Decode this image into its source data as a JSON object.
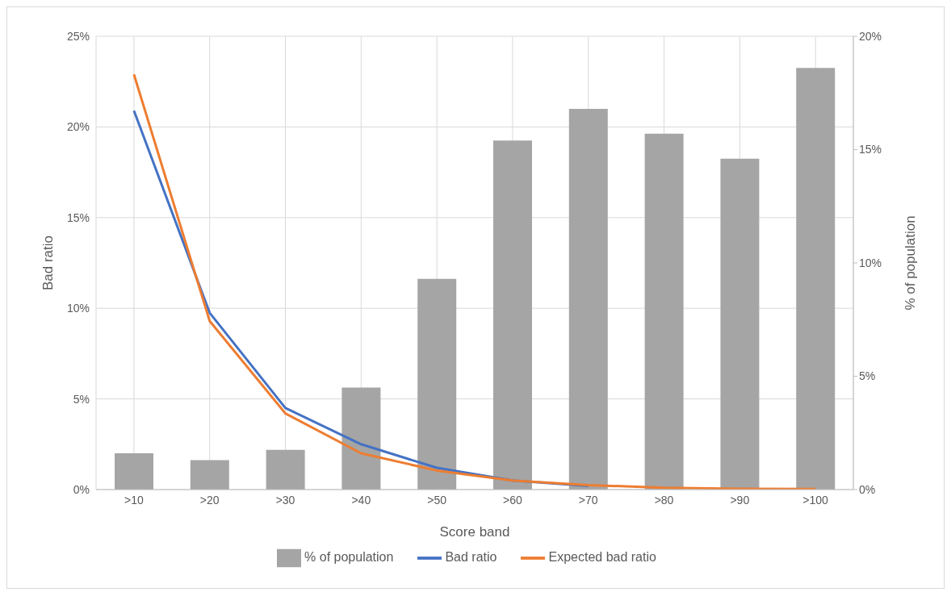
{
  "chart_data": {
    "type": "bar",
    "xlabel": "Score band",
    "ylabel": "Bad ratio",
    "y2label": "% of population",
    "categories": [
      ">10",
      ">20",
      ">30",
      ">40",
      ">50",
      ">60",
      ">70",
      ">80",
      ">90",
      ">100"
    ],
    "series": [
      {
        "name": "% of population",
        "axis": "y2",
        "color": "#a5a5a5",
        "values": [
          1.6,
          1.3,
          1.75,
          4.5,
          9.3,
          15.4,
          16.8,
          15.7,
          14.6,
          18.6
        ]
      },
      {
        "name": "Bad ratio",
        "type": "line",
        "color": "#4472c4",
        "values": [
          20.9,
          9.75,
          4.5,
          2.5,
          1.2,
          0.5,
          0.2,
          null,
          null,
          null
        ]
      },
      {
        "name": "Expected bad ratio",
        "type": "line",
        "color": "#ed7d31",
        "values": [
          22.9,
          9.3,
          4.2,
          2.0,
          1.05,
          0.5,
          0.25,
          0.1,
          0.05,
          0.03
        ]
      }
    ],
    "ylim": [
      0,
      25
    ],
    "yticks": [
      {
        "value": 0,
        "label": "0%"
      },
      {
        "value": 5,
        "label": "5%"
      },
      {
        "value": 10,
        "label": "10%"
      },
      {
        "value": 15,
        "label": "15%"
      },
      {
        "value": 20,
        "label": "20%"
      },
      {
        "value": 25,
        "label": "25%"
      }
    ],
    "y2lim": [
      0,
      20
    ],
    "y2ticks": [
      {
        "value": 0,
        "label": "0%"
      },
      {
        "value": 5,
        "label": "5%"
      },
      {
        "value": 10,
        "label": "10%"
      },
      {
        "value": 15,
        "label": "15%"
      },
      {
        "value": 20,
        "label": "20%"
      }
    ],
    "grid": true,
    "legend": "bottom",
    "marker": "none",
    "line_style": "solid"
  }
}
